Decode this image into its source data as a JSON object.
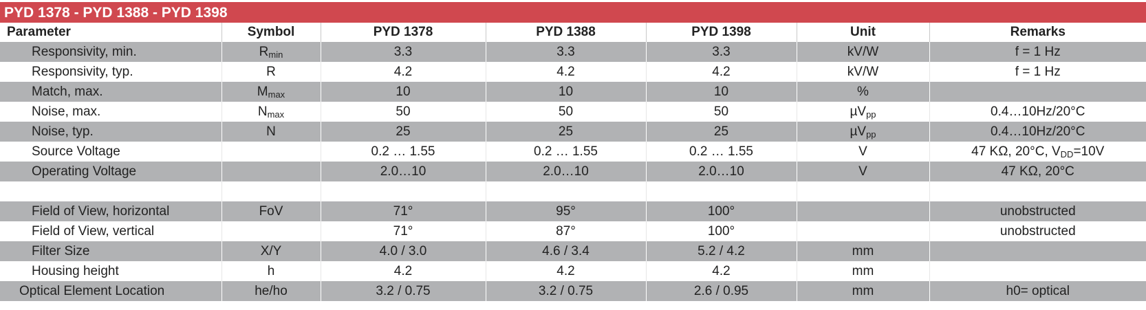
{
  "title": "PYD 1378 - PYD 1388 - PYD 1398",
  "columns": [
    "Parameter",
    "Symbol",
    "PYD 1378",
    "PYD 1388",
    "PYD 1398",
    "Unit",
    "Remarks"
  ],
  "rows": [
    {
      "shade": "g",
      "param": "Responsivity, min.",
      "sym_main": "R",
      "sym_sub": "min",
      "v1": "3.3",
      "v2": "3.3",
      "v3": "3.3",
      "unit_main": "kV/W",
      "unit_sub": "",
      "remark_pre": "f = 1 Hz",
      "remark_sub": "",
      "remark_post": ""
    },
    {
      "shade": "w",
      "param": "Responsivity, typ.",
      "sym_main": "R",
      "sym_sub": "",
      "v1": "4.2",
      "v2": "4.2",
      "v3": "4.2",
      "unit_main": "kV/W",
      "unit_sub": "",
      "remark_pre": "f = 1 Hz",
      "remark_sub": "",
      "remark_post": ""
    },
    {
      "shade": "g",
      "param": "Match, max.",
      "sym_main": "M",
      "sym_sub": "max",
      "v1": "10",
      "v2": "10",
      "v3": "10",
      "unit_main": "%",
      "unit_sub": "",
      "remark_pre": "",
      "remark_sub": "",
      "remark_post": ""
    },
    {
      "shade": "w",
      "param": "Noise, max.",
      "sym_main": "N",
      "sym_sub": "max",
      "v1": "50",
      "v2": "50",
      "v3": "50",
      "unit_main": "µV",
      "unit_sub": "pp",
      "remark_pre": "0.4…10Hz/20°C",
      "remark_sub": "",
      "remark_post": ""
    },
    {
      "shade": "g",
      "param": "Noise, typ.",
      "sym_main": "N",
      "sym_sub": "",
      "v1": "25",
      "v2": "25",
      "v3": "25",
      "unit_main": "µV",
      "unit_sub": "pp",
      "remark_pre": "0.4…10Hz/20°C",
      "remark_sub": "",
      "remark_post": ""
    },
    {
      "shade": "w",
      "param": "Source Voltage",
      "sym_main": "",
      "sym_sub": "",
      "v1": "0.2 … 1.55",
      "v2": "0.2 … 1.55",
      "v3": "0.2 … 1.55",
      "unit_main": "V",
      "unit_sub": "",
      "remark_pre": "47 KΩ, 20°C, V",
      "remark_sub": "DD",
      "remark_post": "=10V"
    },
    {
      "shade": "g",
      "param": "Operating Voltage",
      "sym_main": "",
      "sym_sub": "",
      "v1": "2.0…10",
      "v2": "2.0…10",
      "v3": "2.0…10",
      "unit_main": "V",
      "unit_sub": "",
      "remark_pre": "47 KΩ, 20°C",
      "remark_sub": "",
      "remark_post": ""
    },
    {
      "shade": "w",
      "param": "",
      "sym_main": "",
      "sym_sub": "",
      "v1": "",
      "v2": "",
      "v3": "",
      "unit_main": "",
      "unit_sub": "",
      "remark_pre": "",
      "remark_sub": "",
      "remark_post": ""
    },
    {
      "shade": "g",
      "param": "Field of View, horizontal",
      "sym_main": "FoV",
      "sym_sub": "",
      "v1": "71°",
      "v2": "95°",
      "v3": "100°",
      "unit_main": "",
      "unit_sub": "",
      "remark_pre": "unobstructed",
      "remark_sub": "",
      "remark_post": ""
    },
    {
      "shade": "w",
      "param": "Field of View, vertical",
      "sym_main": "",
      "sym_sub": "",
      "v1": "71°",
      "v2": "87°",
      "v3": "100°",
      "unit_main": "",
      "unit_sub": "",
      "remark_pre": "unobstructed",
      "remark_sub": "",
      "remark_post": ""
    },
    {
      "shade": "g",
      "param": "Filter Size",
      "sym_main": "X/Y",
      "sym_sub": "",
      "v1": "4.0 / 3.0",
      "v2": "4.6 / 3.4",
      "v3": "5.2 / 4.2",
      "unit_main": "mm",
      "unit_sub": "",
      "remark_pre": "",
      "remark_sub": "",
      "remark_post": ""
    },
    {
      "shade": "w",
      "param": "Housing height",
      "sym_main": "h",
      "sym_sub": "",
      "v1": "4.2",
      "v2": "4.2",
      "v3": "4.2",
      "unit_main": "mm",
      "unit_sub": "",
      "remark_pre": "",
      "remark_sub": "",
      "remark_post": ""
    },
    {
      "shade": "g",
      "param": "Optical Element Location",
      "sym_main": "he/ho",
      "sym_sub": "",
      "v1": "3.2 / 0.75",
      "v2": "3.2 / 0.75",
      "v3": "2.6 / 0.95",
      "unit_main": "mm",
      "unit_sub": "",
      "remark_pre": "h0= optical",
      "remark_sub": "",
      "remark_post": ""
    }
  ]
}
